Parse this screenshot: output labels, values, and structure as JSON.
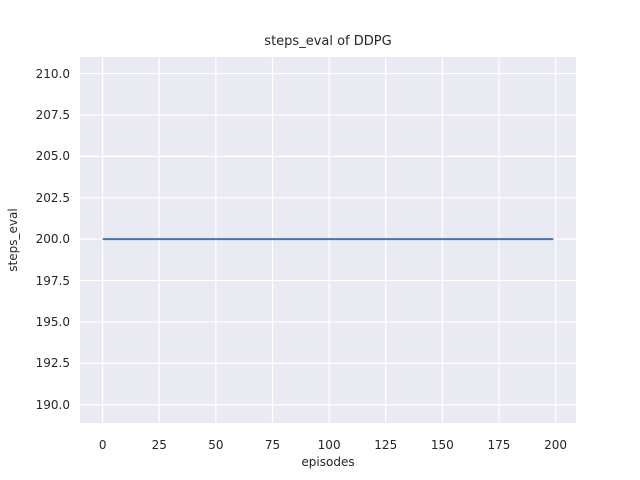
{
  "chart_data": {
    "type": "line",
    "title": "steps_eval of DDPG",
    "xlabel": "episodes",
    "ylabel": "steps_eval",
    "x_ticks": [
      0,
      25,
      50,
      75,
      100,
      125,
      150,
      175,
      200
    ],
    "x_tick_labels": [
      "0",
      "25",
      "50",
      "75",
      "100",
      "125",
      "150",
      "175",
      "200"
    ],
    "y_ticks": [
      190.0,
      192.5,
      195.0,
      197.5,
      200.0,
      202.5,
      205.0,
      207.5,
      210.0
    ],
    "y_tick_labels": [
      "190.0",
      "192.5",
      "195.0",
      "197.5",
      "200.0",
      "202.5",
      "205.0",
      "207.5",
      "210.0"
    ],
    "xlim": [
      -10,
      209
    ],
    "ylim": [
      188.9,
      211.0
    ],
    "grid": true,
    "legend": "none",
    "series": [
      {
        "name": "DDPG",
        "x": [
          0,
          199
        ],
        "y": [
          200,
          200
        ],
        "note": "constant horizontal line at steps_eval = 200 for all 200 evaluation episodes (0 through 199)",
        "color": "#4c72b0",
        "line_width": 2
      }
    ],
    "colors": {
      "figure_bg": "#ffffff",
      "plot_bg": "#eaeaf2",
      "grid": "#ffffff",
      "text": "#262626",
      "line": "#4c72b0"
    }
  }
}
